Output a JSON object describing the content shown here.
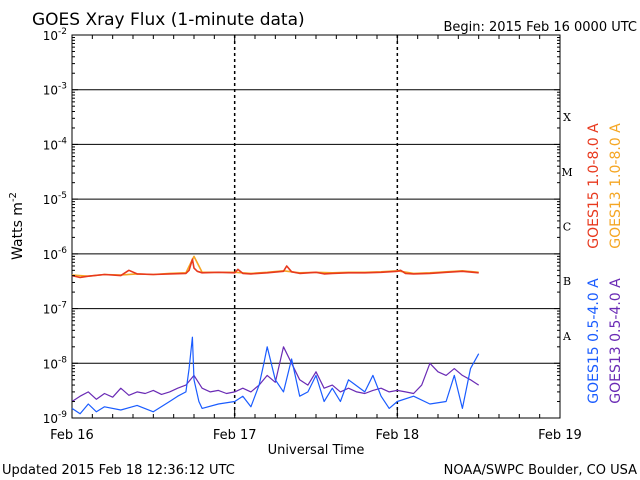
{
  "title": "GOES Xray Flux (1-minute data)",
  "begin_label": "Begin:  2015 Feb 16 0000 UTC",
  "updated_label": "Updated 2015 Feb 18 12:36:12 UTC",
  "credit_label": "NOAA/SWPC Boulder, CO USA",
  "colors": {
    "goes15_long": "#e8391e",
    "goes13_long": "#f5a623",
    "goes15_short": "#1a5cff",
    "goes13_short": "#6a2bb5"
  },
  "chart_data": {
    "type": "line",
    "title": "GOES Xray Flux (1-minute data)",
    "xlabel": "Universal Time",
    "ylabel_base": "Watts m",
    "ylabel_exp": "-2",
    "yscale": "log",
    "ylim": [
      1e-09,
      0.01
    ],
    "xlim": [
      0,
      3
    ],
    "x_ticks": [
      {
        "x": 0,
        "label": "Feb 16"
      },
      {
        "x": 1,
        "label": "Feb 17"
      },
      {
        "x": 2,
        "label": "Feb 18"
      },
      {
        "x": 3,
        "label": "Feb 19"
      }
    ],
    "y_ticks": [
      {
        "exp": -2,
        "label_base": "10",
        "label_exp": "-2"
      },
      {
        "exp": -3,
        "label_base": "10",
        "label_exp": "-3"
      },
      {
        "exp": -4,
        "label_base": "10",
        "label_exp": "-4"
      },
      {
        "exp": -5,
        "label_base": "10",
        "label_exp": "-5"
      },
      {
        "exp": -6,
        "label_base": "10",
        "label_exp": "-6"
      },
      {
        "exp": -7,
        "label_base": "10",
        "label_exp": "-7"
      },
      {
        "exp": -8,
        "label_base": "10",
        "label_exp": "-8"
      },
      {
        "exp": -9,
        "label_base": "10",
        "label_exp": "-9"
      }
    ],
    "flare_classes": [
      {
        "label": "X",
        "exp": -3.5
      },
      {
        "label": "M",
        "exp": -4.5
      },
      {
        "label": "C",
        "exp": -5.5
      },
      {
        "label": "B",
        "exp": -6.5
      },
      {
        "label": "A",
        "exp": -7.5
      }
    ],
    "grid": true,
    "legend_placement": "right",
    "series": [
      {
        "name": "GOES15 1.0-8.0 A",
        "color_key": "goes15_long",
        "x": [
          0.0,
          0.05,
          0.1,
          0.2,
          0.3,
          0.35,
          0.4,
          0.5,
          0.6,
          0.7,
          0.72,
          0.74,
          0.75,
          0.77,
          0.8,
          0.9,
          1.0,
          1.02,
          1.05,
          1.1,
          1.2,
          1.3,
          1.32,
          1.35,
          1.4,
          1.5,
          1.55,
          1.6,
          1.7,
          1.8,
          1.9,
          2.0,
          2.02,
          2.05,
          2.1,
          2.2,
          2.3,
          2.4,
          2.5
        ],
        "y": [
          4e-07,
          3.7e-07,
          3.9e-07,
          4.2e-07,
          4e-07,
          5e-07,
          4.3e-07,
          4.2e-07,
          4.3e-07,
          4.4e-07,
          5e-07,
          8e-07,
          5.5e-07,
          4.8e-07,
          4.5e-07,
          4.6e-07,
          4.5e-07,
          5.2e-07,
          4.4e-07,
          4.3e-07,
          4.5e-07,
          4.8e-07,
          6e-07,
          4.7e-07,
          4.4e-07,
          4.6e-07,
          4.3e-07,
          4.4e-07,
          4.5e-07,
          4.5e-07,
          4.6e-07,
          4.8e-07,
          5e-07,
          4.4e-07,
          4.3e-07,
          4.4e-07,
          4.6e-07,
          4.8e-07,
          4.5e-07
        ]
      },
      {
        "name": "GOES13 1.0-8.0 A",
        "color_key": "goes13_long",
        "x": [
          0.0,
          0.1,
          0.2,
          0.3,
          0.4,
          0.5,
          0.6,
          0.7,
          0.75,
          0.8,
          0.9,
          1.0,
          1.1,
          1.2,
          1.3,
          1.4,
          1.5,
          1.6,
          1.7,
          1.8,
          1.9,
          2.0,
          2.1,
          2.2,
          2.3,
          2.4,
          2.5
        ],
        "y": [
          4.1e-07,
          3.9e-07,
          4.2e-07,
          4.1e-07,
          4.3e-07,
          4.2e-07,
          4.4e-07,
          4.5e-07,
          9e-07,
          4.6e-07,
          4.6e-07,
          4.6e-07,
          4.4e-07,
          4.6e-07,
          4.9e-07,
          4.5e-07,
          4.6e-07,
          4.5e-07,
          4.6e-07,
          4.6e-07,
          4.7e-07,
          4.9e-07,
          4.4e-07,
          4.5e-07,
          4.7e-07,
          4.9e-07,
          4.6e-07
        ]
      },
      {
        "name": "GOES15 0.5-4.0 A",
        "color_key": "goes15_short",
        "x": [
          0.0,
          0.05,
          0.1,
          0.15,
          0.2,
          0.3,
          0.4,
          0.5,
          0.6,
          0.65,
          0.7,
          0.72,
          0.74,
          0.75,
          0.78,
          0.8,
          0.9,
          1.0,
          1.05,
          1.1,
          1.15,
          1.18,
          1.2,
          1.25,
          1.3,
          1.35,
          1.4,
          1.45,
          1.5,
          1.55,
          1.6,
          1.65,
          1.7,
          1.8,
          1.85,
          1.9,
          1.95,
          2.0,
          2.1,
          2.2,
          2.3,
          2.35,
          2.4,
          2.45,
          2.5
        ],
        "y": [
          1.5e-09,
          1.2e-09,
          1.8e-09,
          1.3e-09,
          1.6e-09,
          1.4e-09,
          1.7e-09,
          1.3e-09,
          2e-09,
          2.5e-09,
          3e-09,
          8e-09,
          3e-08,
          5e-09,
          2e-09,
          1.5e-09,
          1.8e-09,
          2e-09,
          2.5e-09,
          1.6e-09,
          4e-09,
          1e-08,
          2e-08,
          5e-09,
          3e-09,
          1.2e-08,
          2.5e-09,
          3e-09,
          6e-09,
          2e-09,
          3.5e-09,
          2e-09,
          5e-09,
          3e-09,
          6e-09,
          2.5e-09,
          1.5e-09,
          2e-09,
          2.5e-09,
          1.8e-09,
          2e-09,
          6e-09,
          1.5e-09,
          8e-09,
          1.5e-08
        ]
      },
      {
        "name": "GOES13 0.5-4.0 A",
        "color_key": "goes13_short",
        "x": [
          0.0,
          0.05,
          0.1,
          0.15,
          0.2,
          0.25,
          0.3,
          0.35,
          0.4,
          0.45,
          0.5,
          0.55,
          0.6,
          0.65,
          0.7,
          0.75,
          0.8,
          0.85,
          0.9,
          0.95,
          1.0,
          1.05,
          1.1,
          1.15,
          1.2,
          1.25,
          1.3,
          1.35,
          1.4,
          1.45,
          1.5,
          1.55,
          1.6,
          1.65,
          1.7,
          1.75,
          1.8,
          1.85,
          1.9,
          1.95,
          2.0,
          2.05,
          2.1,
          2.15,
          2.2,
          2.25,
          2.3,
          2.35,
          2.4,
          2.45,
          2.5
        ],
        "y": [
          2e-09,
          2.5e-09,
          3e-09,
          2.2e-09,
          2.8e-09,
          2.4e-09,
          3.5e-09,
          2.6e-09,
          3e-09,
          2.8e-09,
          3.2e-09,
          2.7e-09,
          3e-09,
          3.5e-09,
          4e-09,
          6e-09,
          3.5e-09,
          3e-09,
          3.2e-09,
          2.8e-09,
          3e-09,
          3.5e-09,
          3e-09,
          4e-09,
          6e-09,
          4.5e-09,
          2e-08,
          1e-08,
          5e-09,
          4e-09,
          7e-09,
          3.5e-09,
          4e-09,
          3e-09,
          3.5e-09,
          3e-09,
          2.8e-09,
          3.2e-09,
          3.5e-09,
          3e-09,
          3.2e-09,
          3e-09,
          2.8e-09,
          4e-09,
          1e-08,
          7e-09,
          6e-09,
          8e-09,
          6e-09,
          5e-09,
          4e-09
        ]
      }
    ]
  }
}
